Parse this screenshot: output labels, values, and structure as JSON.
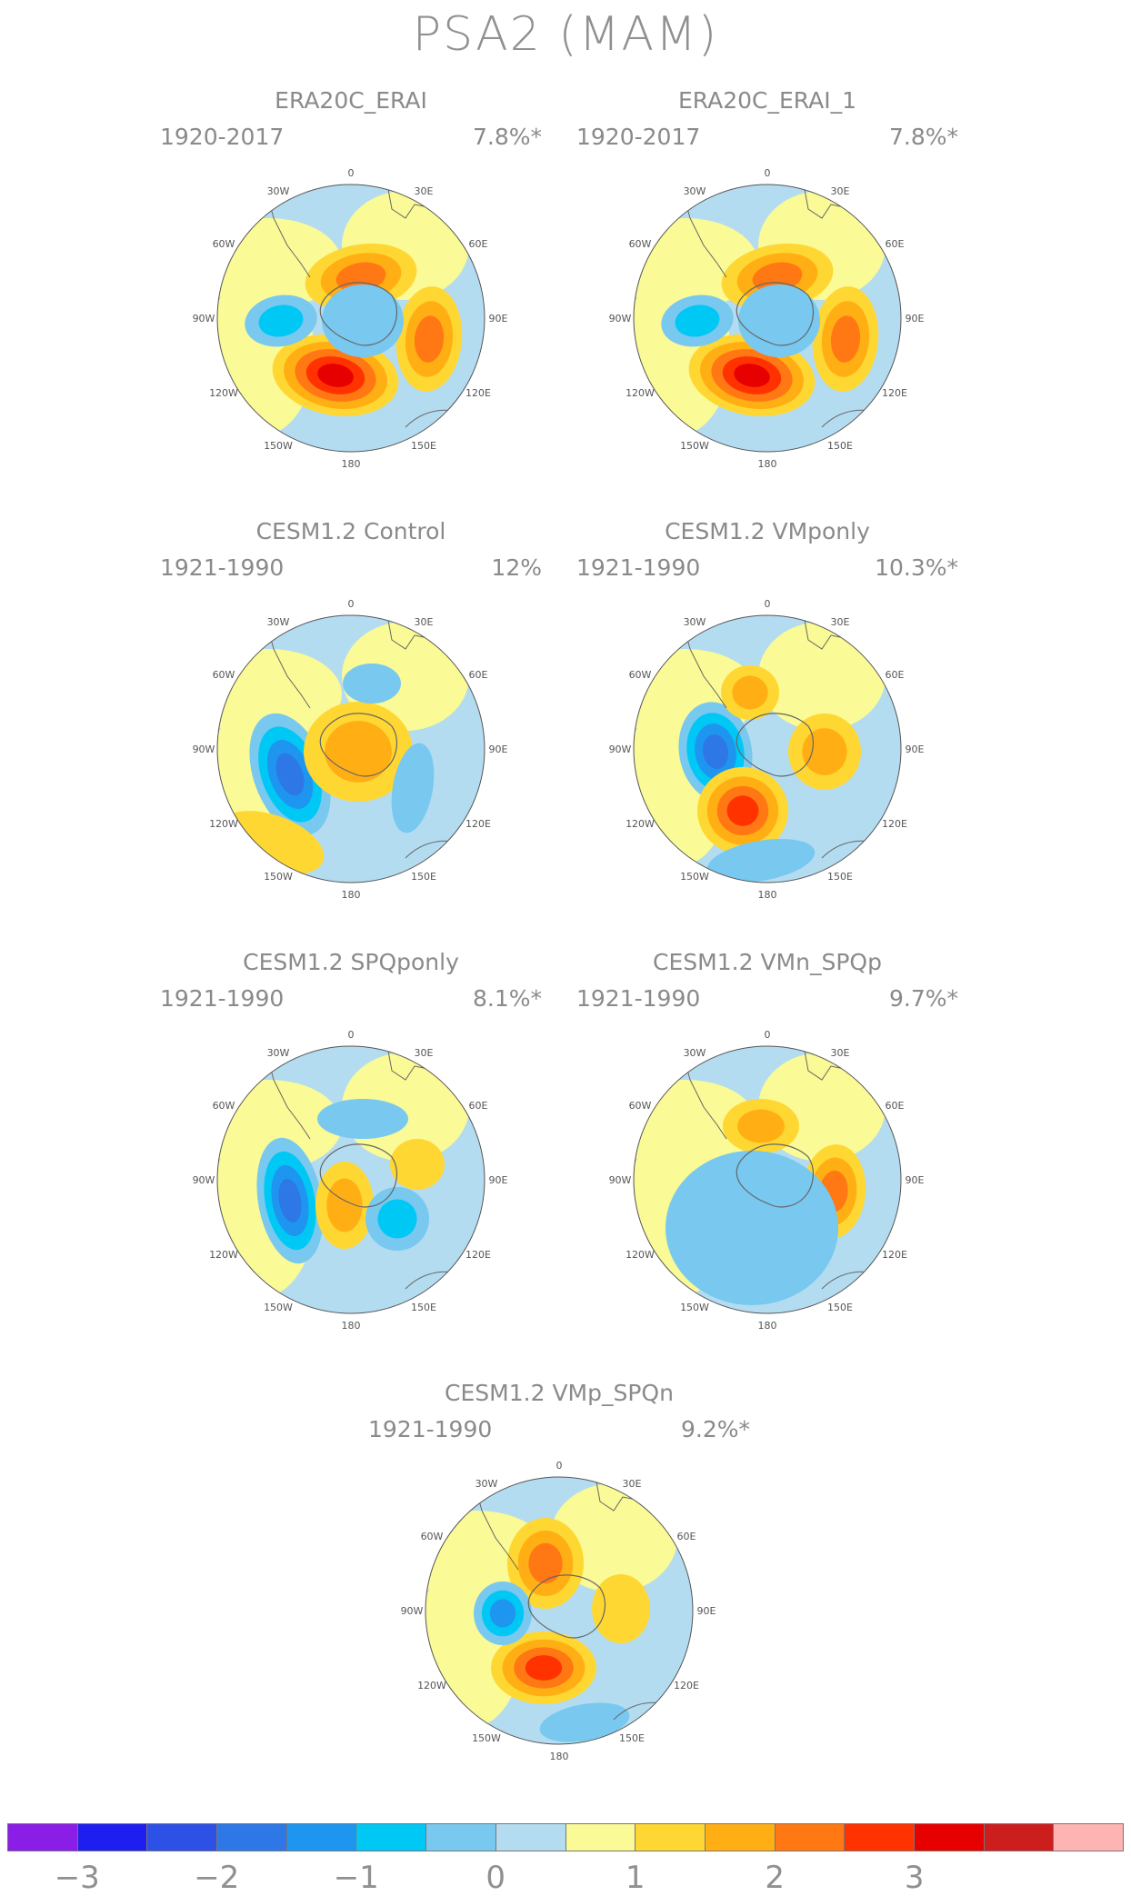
{
  "title": "PSA2 (MAM)",
  "panels": [
    {
      "name": "ERA20C_ERAI",
      "years": "1920-2017",
      "percent": "7.8%*"
    },
    {
      "name": "ERA20C_ERAI_1",
      "years": "1920-2017",
      "percent": "7.8%*"
    },
    {
      "name": "CESM1.2 Control",
      "years": "1921-1990",
      "percent": "12%"
    },
    {
      "name": "CESM1.2 VMponly",
      "years": "1921-1990",
      "percent": "10.3%*"
    },
    {
      "name": "CESM1.2 SPQponly",
      "years": "1921-1990",
      "percent": "8.1%*"
    },
    {
      "name": "CESM1.2 VMn_SPQp",
      "years": "1921-1990",
      "percent": "9.7%*"
    },
    {
      "name": "CESM1.2 VMp_SPQn",
      "years": "1921-1990",
      "percent": "9.2%*"
    }
  ],
  "longitude_labels": [
    "0",
    "30E",
    "60E",
    "90E",
    "120E",
    "150E",
    "180",
    "150W",
    "120W",
    "90W",
    "60W",
    "30W"
  ],
  "colorbar": {
    "colors": [
      "#8a1ee6",
      "#1e1ef0",
      "#2d50e6",
      "#2d78e6",
      "#1e96f0",
      "#00c8f5",
      "#78c8f0",
      "#b4dcf0",
      "#fafa96",
      "#ffd732",
      "#ffaf14",
      "#ff7814",
      "#ff3200",
      "#e60000",
      "#cd1e1e",
      "#ffb4b4"
    ],
    "tick_labels": [
      "−3",
      "−2",
      "−1",
      "0",
      "1",
      "2",
      "3"
    ],
    "tick_values": [
      -3,
      -2,
      -1,
      0,
      1,
      2,
      3
    ],
    "range": [
      -3.5,
      4.5
    ]
  },
  "colors": {
    "neutral_neg": "#b4dcf0",
    "neutral_pos": "#fafa96",
    "coastline": "#666666"
  }
}
